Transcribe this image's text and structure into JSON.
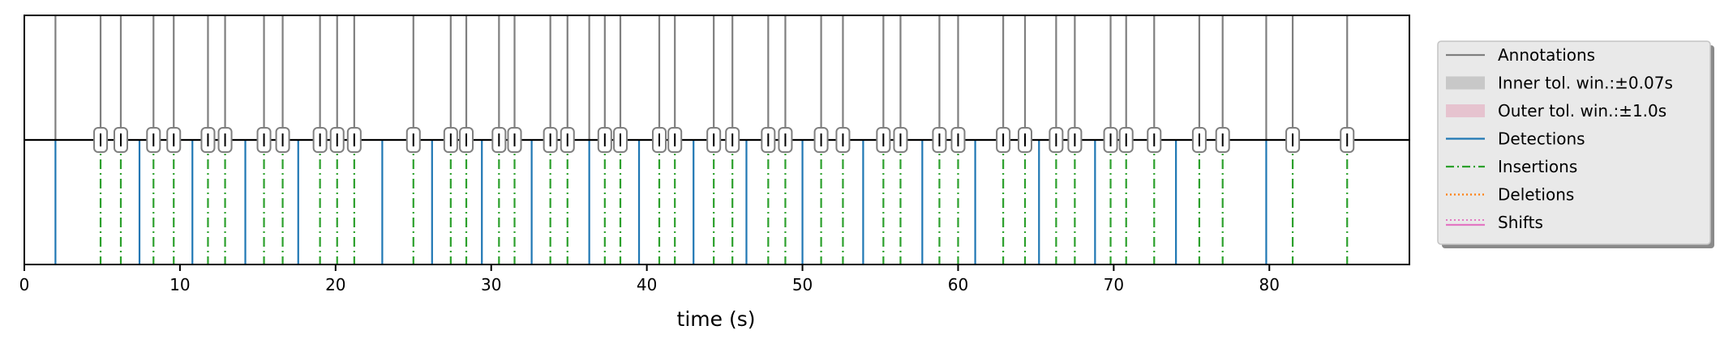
{
  "chart_data": {
    "type": "event-timeline",
    "xlabel": "time (s)",
    "xlim": [
      0,
      89
    ],
    "xticks": [
      0,
      10,
      20,
      30,
      40,
      50,
      60,
      70,
      80
    ],
    "grid": false,
    "legend_position": "right",
    "annotations": [
      2.0,
      4.9,
      6.2,
      8.3,
      9.6,
      11.8,
      12.9,
      15.4,
      16.6,
      19.0,
      20.1,
      21.2,
      25.0,
      27.4,
      28.4,
      30.5,
      31.5,
      33.8,
      34.9,
      36.3,
      37.3,
      38.3,
      40.8,
      41.8,
      44.3,
      45.5,
      47.8,
      48.9,
      51.2,
      52.6,
      55.2,
      56.3,
      58.8,
      60.0,
      62.9,
      64.3,
      66.3,
      67.5,
      69.8,
      70.8,
      72.6,
      75.5,
      77.0,
      79.8,
      81.5,
      85.0
    ],
    "detections": [
      2.0,
      7.4,
      10.8,
      14.2,
      17.6,
      23.0,
      26.2,
      29.4,
      32.6,
      36.3,
      39.5,
      43.0,
      46.4,
      50.0,
      53.9,
      57.7,
      61.1,
      65.2,
      68.8,
      74.0,
      79.8
    ],
    "insertions": [
      4.9,
      6.2,
      8.3,
      9.6,
      11.8,
      12.9,
      15.4,
      16.6,
      19.0,
      20.1,
      21.2,
      25.0,
      27.4,
      28.4,
      30.5,
      31.5,
      33.8,
      34.9,
      37.3,
      38.3,
      40.8,
      41.8,
      44.3,
      45.5,
      47.8,
      48.9,
      51.2,
      52.6,
      55.2,
      56.3,
      58.8,
      60.0,
      62.9,
      64.3,
      66.3,
      67.5,
      69.8,
      70.8,
      72.6,
      75.5,
      77.0,
      81.5,
      85.0
    ],
    "deletions": [],
    "shifts": [],
    "markers": [
      4.9,
      6.2,
      8.3,
      9.6,
      11.8,
      12.9,
      15.4,
      16.6,
      19.0,
      20.1,
      21.2,
      25.0,
      27.4,
      28.4,
      30.5,
      31.5,
      33.8,
      34.9,
      37.3,
      38.3,
      40.8,
      41.8,
      44.3,
      45.5,
      47.8,
      48.9,
      51.2,
      52.6,
      55.2,
      56.3,
      58.8,
      60.0,
      62.9,
      64.3,
      66.3,
      67.5,
      69.8,
      70.8,
      72.6,
      75.5,
      77.0,
      81.5,
      85.0
    ],
    "legend": [
      {
        "label": "Annotations",
        "style": "line",
        "color": "#7f7f7f"
      },
      {
        "label": "Inner tol. win.:±0.07s",
        "style": "patch",
        "color": "#c8c8c8"
      },
      {
        "label": "Outer tol. win.:±1.0s",
        "style": "patch",
        "color": "#e6c3cf"
      },
      {
        "label": "Detections",
        "style": "line",
        "color": "#1f77b4"
      },
      {
        "label": "Insertions",
        "style": "dashdot",
        "color": "#2ca02c"
      },
      {
        "label": "Deletions",
        "style": "dotted",
        "color": "#ff7f0e"
      },
      {
        "label": "Shifts",
        "style": "line-dotted",
        "color": "#e377c2"
      }
    ]
  }
}
